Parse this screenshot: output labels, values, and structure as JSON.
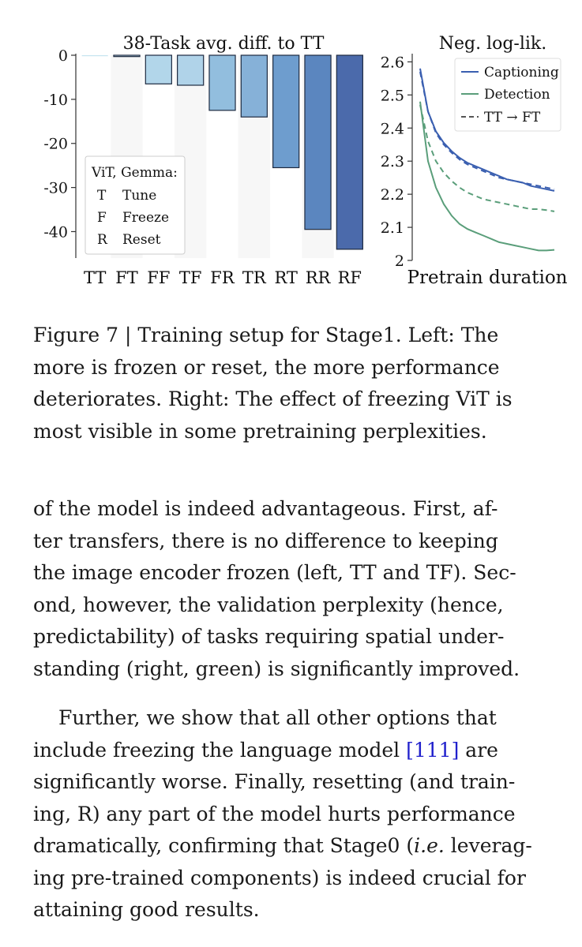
{
  "chart_data": [
    {
      "type": "bar",
      "title": "38-Task avg. diff. to TT",
      "categories": [
        "TT",
        "FT",
        "FF",
        "TF",
        "FR",
        "TR",
        "RT",
        "RR",
        "RF"
      ],
      "values": [
        0,
        -0.3,
        -6.5,
        -6.8,
        -12.5,
        -14,
        -25.5,
        -39.5,
        -44
      ],
      "ylim": [
        -46,
        0
      ],
      "yticks": [
        "0",
        "-10",
        "-20",
        "-30",
        "-40"
      ],
      "bar_colors": [
        "#c5e3ef",
        "#b9dceb",
        "#b2d6ea",
        "#b0d3e9",
        "#92bede",
        "#86b1d8",
        "#6e9dce",
        "#5b86bf",
        "#4b6aab"
      ],
      "grid": false,
      "legend": {
        "placement": "bottom-left",
        "title": "ViT, Gemma:",
        "entries": [
          {
            "key": "T",
            "label": "Tune"
          },
          {
            "key": "F",
            "label": "Freeze"
          },
          {
            "key": "R",
            "label": "Reset"
          }
        ]
      }
    },
    {
      "type": "line",
      "title": "Neg. log-lik.",
      "xlabel": "Pretrain duration",
      "ylim": [
        2.0,
        2.62
      ],
      "yticks": [
        "2",
        "2.1",
        "2.2",
        "2.3",
        "2.4",
        "2.5",
        "2.6"
      ],
      "legend_placement": "top-right",
      "series": [
        {
          "name": "Captioning",
          "color": "#3a5fb0",
          "style": "solid",
          "y": [
            2.58,
            2.45,
            2.39,
            2.355,
            2.33,
            2.31,
            2.295,
            2.285,
            2.275,
            2.265,
            2.255,
            2.245,
            2.24,
            2.235,
            2.225,
            2.22,
            2.215,
            2.21
          ]
        },
        {
          "name": "Captioning (TT → FT)",
          "color": "#3a5fb0",
          "style": "dashed",
          "y": [
            2.57,
            2.45,
            2.385,
            2.35,
            2.325,
            2.305,
            2.29,
            2.28,
            2.27,
            2.26,
            2.25,
            2.245,
            2.24,
            2.235,
            2.23,
            2.225,
            2.22,
            2.215
          ]
        },
        {
          "name": "Detection",
          "color": "#5a9e7a",
          "style": "solid",
          "y": [
            2.48,
            2.3,
            2.22,
            2.17,
            2.135,
            2.11,
            2.095,
            2.085,
            2.075,
            2.065,
            2.055,
            2.05,
            2.045,
            2.04,
            2.035,
            2.03,
            2.03,
            2.032
          ]
        },
        {
          "name": "Detection (TT → FT)",
          "color": "#5a9e7a",
          "style": "dashed",
          "y": [
            2.47,
            2.36,
            2.3,
            2.265,
            2.24,
            2.22,
            2.205,
            2.195,
            2.185,
            2.18,
            2.175,
            2.17,
            2.165,
            2.16,
            2.155,
            2.155,
            2.152,
            2.148
          ]
        }
      ],
      "legend_entries": [
        {
          "label": "Captioning",
          "color": "#3a5fb0",
          "style": "solid"
        },
        {
          "label": "Detection",
          "color": "#5a9e7a",
          "style": "solid"
        },
        {
          "label": "TT → FT",
          "color": "#555555",
          "style": "dashed"
        }
      ]
    }
  ],
  "caption": {
    "lines": [
      "Figure 7 | Training setup for Stage1. Left: The",
      "more is frozen or reset, the more performance",
      "deteriorates. Right: The effect of freezing ViT is",
      "most visible in some pretraining perplexities."
    ]
  },
  "body": {
    "para1": [
      "of the model is indeed advantageous. First, af-",
      "ter transfers, there is no difference to keeping",
      "the image encoder frozen (left, TT and TF). Sec-",
      "ond, however, the validation perplexity (hence,",
      "predictability) of tasks requiring spatial under-",
      "standing (right, green) is significantly improved."
    ],
    "para2_l1": "Further, we show that all other options that",
    "para2_l2a": "include freezing the language model ",
    "para2_cite": "[111]",
    "para2_l2b": " are",
    "para2_l3": "significantly worse. Finally, resetting (and train-",
    "para2_l4": "ing, R) any part of the model hurts performance",
    "para2_l5a": "dramatically, confirming that Stage0 (",
    "para2_l5i": "i.e.",
    "para2_l5b": " leverag-",
    "para2_l6": "ing pre-trained components) is indeed crucial for",
    "para2_l7": "attaining good results."
  }
}
